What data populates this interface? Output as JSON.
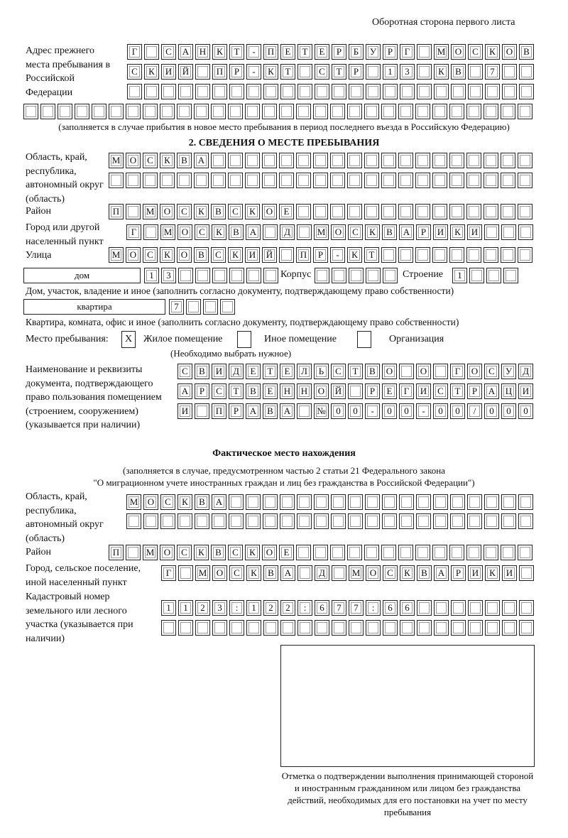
{
  "header": {
    "page_side": "Оборотная сторона первого листа"
  },
  "prev_address": {
    "label": "Адрес прежнего места пребывания в Российской Федерации",
    "rows": [
      [
        "Г",
        "",
        "С",
        "А",
        "Н",
        "К",
        "Т",
        "-",
        "П",
        "Е",
        "Т",
        "Е",
        "Р",
        "Б",
        "У",
        "Р",
        "Г",
        "",
        "М",
        "О",
        "С",
        "К",
        "О",
        "В"
      ],
      [
        "С",
        "К",
        "И",
        "Й",
        "",
        "П",
        "Р",
        "-",
        "К",
        "Т",
        "",
        "С",
        "Т",
        "Р",
        "",
        "1",
        "3",
        "",
        "К",
        "В",
        "",
        "7",
        "",
        ""
      ],
      [
        "",
        "",
        "",
        "",
        "",
        "",
        "",
        "",
        "",
        "",
        "",
        "",
        "",
        "",
        "",
        "",
        "",
        "",
        "",
        "",
        "",
        "",
        "",
        ""
      ],
      [
        "",
        "",
        "",
        "",
        "",
        "",
        "",
        "",
        "",
        "",
        "",
        "",
        "",
        "",
        "",
        "",
        "",
        "",
        "",
        "",
        "",
        "",
        "",
        "",
        "",
        "",
        "",
        "",
        "",
        ""
      ]
    ],
    "note": "(заполняется в случае прибытия в новое место пребывания в период последнего въезда в Российскую Федерацию)"
  },
  "section2": {
    "title": "2. СВЕДЕНИЯ О МЕСТЕ ПРЕБЫВАНИЯ",
    "region_label": "Область, край, республика, автономный округ (область)",
    "region_rows": [
      [
        "М",
        "О",
        "С",
        "К",
        "В",
        "А",
        "",
        "",
        "",
        "",
        "",
        "",
        "",
        "",
        "",
        "",
        "",
        "",
        "",
        "",
        "",
        "",
        "",
        "",
        ""
      ],
      [
        "",
        "",
        "",
        "",
        "",
        "",
        "",
        "",
        "",
        "",
        "",
        "",
        "",
        "",
        "",
        "",
        "",
        "",
        "",
        "",
        "",
        "",
        "",
        "",
        ""
      ]
    ],
    "district_label": "Район",
    "district_row": [
      "П",
      "",
      "М",
      "О",
      "С",
      "К",
      "В",
      "С",
      "К",
      "О",
      "Е",
      "",
      "",
      "",
      "",
      "",
      "",
      "",
      "",
      "",
      "",
      "",
      "",
      "",
      ""
    ],
    "city_label": "Город или другой населенный пункт",
    "city_row": [
      "Г",
      "",
      "М",
      "О",
      "С",
      "К",
      "В",
      "А",
      "",
      "Д",
      "",
      "М",
      "О",
      "С",
      "К",
      "В",
      "А",
      "Р",
      "И",
      "К",
      "И",
      "",
      "",
      ""
    ],
    "street_label": "Улица",
    "street_row": [
      "М",
      "О",
      "С",
      "К",
      "О",
      "В",
      "С",
      "К",
      "И",
      "Й",
      "",
      "П",
      "Р",
      "-",
      "К",
      "Т",
      "",
      "",
      "",
      "",
      "",
      "",
      "",
      "",
      ""
    ],
    "house_type": "дом",
    "house_row": [
      "1",
      "3",
      "",
      "",
      "",
      "",
      "",
      ""
    ],
    "korpus_label": "Корпус",
    "korpus_row": [
      "",
      "",
      "",
      "",
      ""
    ],
    "building_label": "Строение",
    "building_row": [
      "1",
      "",
      "",
      ""
    ],
    "house_note": "Дом, участок, владение и иное (заполнить согласно документу, подтверждающему право собственности)",
    "flat_type": "квартира",
    "flat_row": [
      "7",
      "",
      "",
      ""
    ],
    "flat_note": "Квартира, комната, офис и иное (заполнить согласно документу, подтверждающему право собственности)",
    "stay_label": "Место пребывания:",
    "stay_options": [
      {
        "label": "Жилое помещение",
        "mark": "X"
      },
      {
        "label": "Иное помещение",
        "mark": ""
      },
      {
        "label": "Организация",
        "mark": ""
      }
    ],
    "stay_note": "(Необходимо выбрать нужное)",
    "doc_label": "Наименование и реквизиты документа, подтверждающего право пользования помещением (строением, сооружением) (указывается при наличии)",
    "doc_rows": [
      [
        "С",
        "В",
        "И",
        "Д",
        "Е",
        "Т",
        "Е",
        "Л",
        "Ь",
        "С",
        "Т",
        "В",
        "О",
        "",
        "О",
        "",
        "Г",
        "О",
        "С",
        "У",
        "Д"
      ],
      [
        "А",
        "Р",
        "С",
        "Т",
        "В",
        "Е",
        "Н",
        "Н",
        "О",
        "Й",
        "",
        "Р",
        "Е",
        "Г",
        "И",
        "С",
        "Т",
        "Р",
        "А",
        "Ц",
        "И"
      ],
      [
        "И",
        "",
        "П",
        "Р",
        "А",
        "В",
        "А",
        "",
        "№",
        "0",
        "0",
        "-",
        "0",
        "0",
        "-",
        "0",
        "0",
        "/",
        "0",
        "0",
        "0"
      ]
    ]
  },
  "actual": {
    "title": "Фактическое место нахождения",
    "note1": "(заполняется в случае, предусмотренном частью 2 статьи 21 Федерального закона",
    "note2": "\"О миграционном учете иностранных граждан и лиц без гражданства в Российской Федерации\")",
    "region_label": "Область, край, республика, автономный округ (область)",
    "region_rows": [
      [
        "М",
        "О",
        "С",
        "К",
        "В",
        "А",
        "",
        "",
        "",
        "",
        "",
        "",
        "",
        "",
        "",
        "",
        "",
        "",
        "",
        "",
        "",
        "",
        "",
        ""
      ],
      [
        "",
        "",
        "",
        "",
        "",
        "",
        "",
        "",
        "",
        "",
        "",
        "",
        "",
        "",
        "",
        "",
        "",
        "",
        "",
        "",
        "",
        "",
        "",
        ""
      ]
    ],
    "district_label": "Район",
    "district_row": [
      "П",
      "",
      "М",
      "О",
      "С",
      "К",
      "В",
      "С",
      "К",
      "О",
      "Е",
      "",
      "",
      "",
      "",
      "",
      "",
      "",
      "",
      "",
      "",
      "",
      "",
      "",
      ""
    ],
    "city_label": "Город, сельское поселение, иной населенный пункт",
    "city_row": [
      "Г",
      "",
      "М",
      "О",
      "С",
      "К",
      "В",
      "А",
      "",
      "Д",
      "",
      "М",
      "О",
      "С",
      "К",
      "В",
      "А",
      "Р",
      "И",
      "К",
      "И",
      ""
    ],
    "cadastral_label": "Кадастровый номер земельного или лесного участка (указывается при наличии)",
    "cadastral_rows": [
      [
        "1",
        "1",
        "2",
        "3",
        ":",
        "1",
        "2",
        "2",
        ":",
        "6",
        "7",
        "7",
        ":",
        "6",
        "6",
        "",
        "",
        "",
        "",
        "",
        "",
        ""
      ],
      [
        "",
        "",
        "",
        "",
        "",
        "",
        "",
        "",
        "",
        "",
        "",
        "",
        "",
        "",
        "",
        "",
        "",
        "",
        "",
        "",
        "",
        ""
      ]
    ]
  },
  "confirmation": {
    "caption": "Отметка о подтверждении выполнения принимающей стороной и иностранным гражданином или лицом без гражданства действий, необходимых для его постановки на учет по месту пребывания"
  }
}
